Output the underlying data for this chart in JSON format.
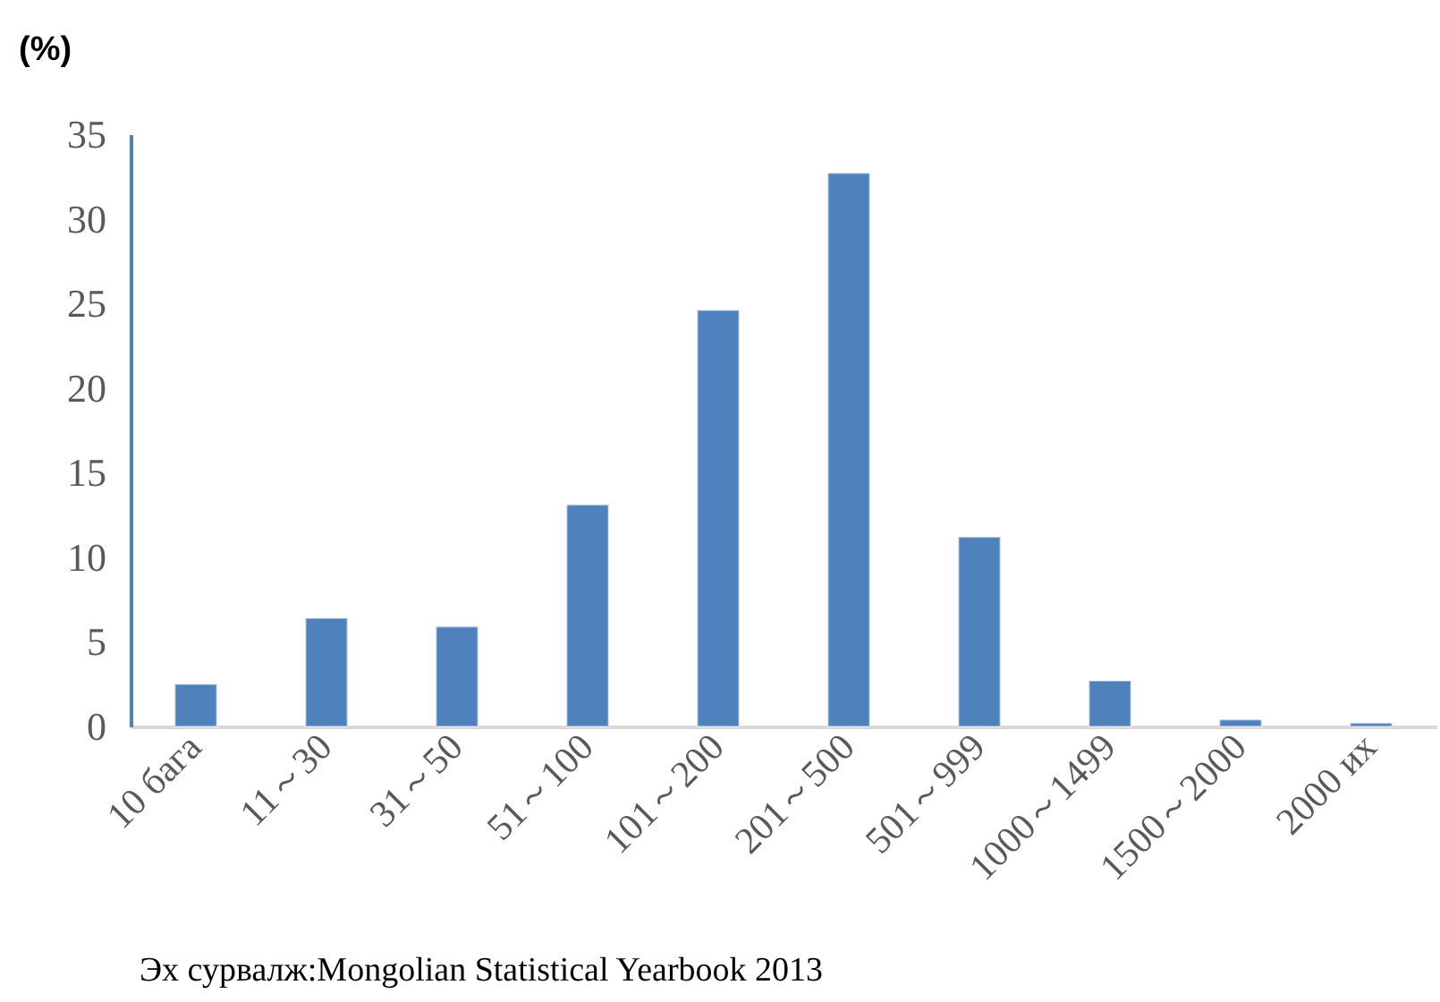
{
  "chart_data": {
    "type": "bar",
    "ylabel": "(%)",
    "categories": [
      "10 бага",
      "11～30",
      "31～50",
      "51～100",
      "101～200",
      "201～500",
      "501～999",
      "1000～1499",
      "1500～2000",
      "2000 их"
    ],
    "values": [
      2.5,
      6.4,
      5.9,
      13.1,
      24.6,
      32.7,
      11.2,
      2.7,
      0.4,
      0.2
    ],
    "color": "#4f81bd",
    "ylim": [
      0,
      35
    ],
    "yticks": [
      0,
      5,
      10,
      15,
      20,
      25,
      30,
      35
    ],
    "grid": false,
    "annotations": [
      "Эх сурвалж:Mongolian Statistical Yearbook 2013"
    ]
  }
}
